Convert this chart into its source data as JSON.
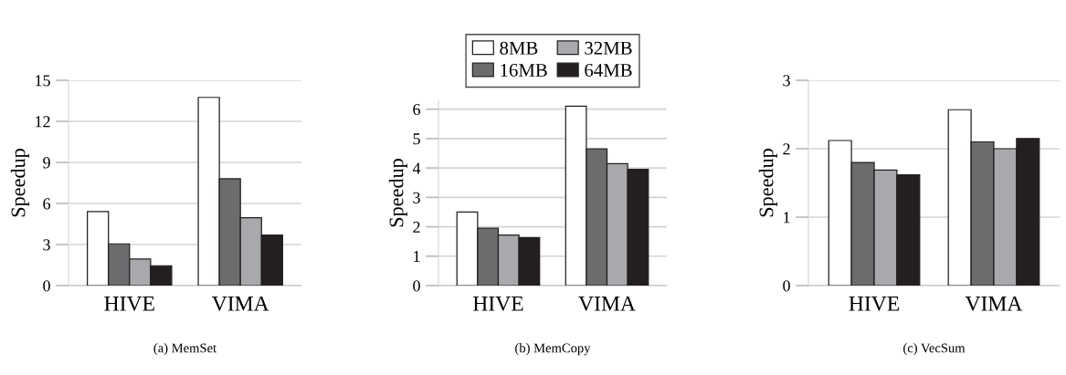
{
  "chart_data": [
    {
      "type": "bar",
      "categories": [
        "HIVE",
        "VIMA"
      ],
      "xlabel": "(a) MemSet",
      "ylabel": "Speedup",
      "ylim": [
        0,
        15
      ],
      "yticks": [
        0,
        3,
        6,
        9,
        12,
        15
      ],
      "grid": "y",
      "legend": false,
      "series": [
        {
          "color": "#ffffff",
          "values": [
            5.4,
            13.75
          ]
        },
        {
          "color": "#6b6c6e",
          "values": [
            3.05,
            7.8
          ]
        },
        {
          "color": "#a8a9ac",
          "values": [
            1.95,
            4.95
          ]
        },
        {
          "color": "#231f20",
          "values": [
            1.45,
            3.7
          ]
        }
      ]
    },
    {
      "type": "bar",
      "categories": [
        "HIVE",
        "VIMA"
      ],
      "xlabel": "(b) MemCopy",
      "ylabel": "Speedup",
      "ylim": [
        0,
        6.3
      ],
      "yticks": [
        0,
        1,
        2,
        3,
        4,
        5,
        6
      ],
      "grid": "y",
      "legend": "top",
      "series": [
        {
          "name": "8MB",
          "color": "#ffffff",
          "values": [
            2.5,
            6.1
          ]
        },
        {
          "name": "16MB",
          "color": "#6b6c6e",
          "values": [
            1.95,
            4.65
          ]
        },
        {
          "name": "32MB",
          "color": "#a8a9ac",
          "values": [
            1.72,
            4.15
          ]
        },
        {
          "name": "64MB",
          "color": "#231f20",
          "values": [
            1.63,
            3.95
          ]
        }
      ]
    },
    {
      "type": "bar",
      "categories": [
        "HIVE",
        "VIMA"
      ],
      "xlabel": "(c) VecSum",
      "ylabel": "Speedup",
      "ylim": [
        0,
        3
      ],
      "yticks": [
        0,
        1,
        2,
        3
      ],
      "grid": "y",
      "legend": false,
      "series": [
        {
          "color": "#ffffff",
          "values": [
            2.12,
            2.57
          ]
        },
        {
          "color": "#6b6c6e",
          "values": [
            1.8,
            2.1
          ]
        },
        {
          "color": "#a8a9ac",
          "values": [
            1.69,
            2.0
          ]
        },
        {
          "color": "#231f20",
          "values": [
            1.62,
            2.15
          ]
        }
      ]
    }
  ]
}
